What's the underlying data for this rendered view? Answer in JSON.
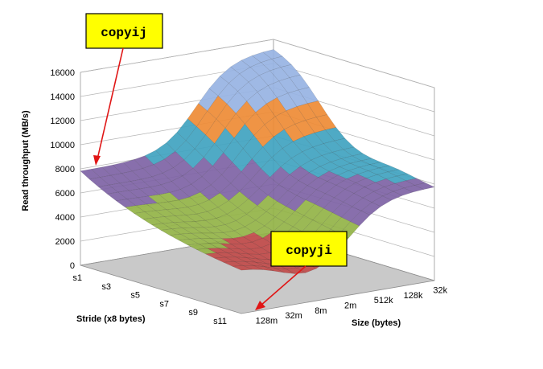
{
  "chart_data": {
    "type": "surface3d",
    "title": "",
    "zlabel": "Read throughput (MB/s)",
    "stride_label": "Stride (x8 bytes)",
    "size_label": "Size (bytes)",
    "zlim": [
      0,
      16000
    ],
    "z_ticks": [
      "0",
      "2000",
      "4000",
      "6000",
      "8000",
      "10000",
      "12000",
      "14000",
      "16000"
    ],
    "stride_ticks": [
      "s1",
      "s3",
      "s5",
      "s7",
      "s9",
      "s11"
    ],
    "size_ticks": [
      "32k",
      "128k",
      "512k",
      "2m",
      "8m",
      "32m",
      "128m"
    ],
    "color_bands": [
      "#3f73b5",
      "#c14b4a",
      "#93b346",
      "#7e63a5",
      "#40a3c0",
      "#ee8b35",
      "#97b3e3"
    ],
    "annotations": [
      {
        "label": "copyij",
        "points_to": "stride s1, size 128m"
      },
      {
        "label": "copyji",
        "points_to": "stride s11, size 128m"
      }
    ],
    "legend": "none",
    "grid": true
  }
}
